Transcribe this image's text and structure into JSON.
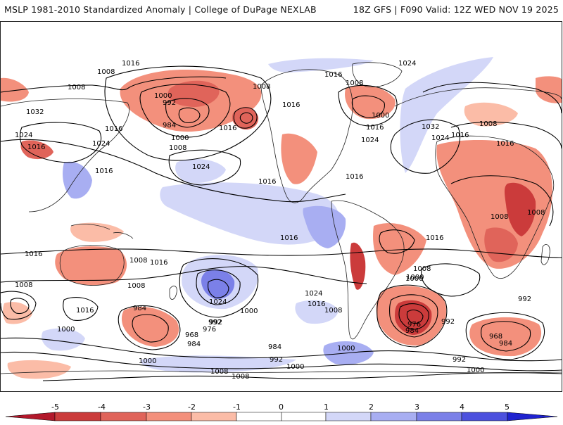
{
  "header": {
    "left": "MSLP 1981-2010 Standardized Anomaly | College of DuPage NEXLAB",
    "right": "18Z GFS | F090 Valid: 12Z WED NOV 19 2025"
  },
  "colors": {
    "neg5": "#b2182b",
    "neg4": "#cb3b3b",
    "neg3": "#e0645a",
    "neg2": "#f3907c",
    "neg1": "#fbbca7",
    "zero": "#ffffff",
    "pos1": "#d3d7f8",
    "pos2": "#a8aef2",
    "pos3": "#7b80e8",
    "pos4": "#4c50de",
    "pos5": "#1f22cf",
    "land": "#ffffff",
    "coast": "#222222",
    "isobar": "#000000"
  },
  "isobar_labels": [
    {
      "id": "l1",
      "text": "1016"
    },
    {
      "id": "l2",
      "text": "1008"
    },
    {
      "id": "l3",
      "text": "1008"
    },
    {
      "id": "l4",
      "text": "1000"
    },
    {
      "id": "l5",
      "text": "992"
    },
    {
      "id": "l6",
      "text": "984"
    },
    {
      "id": "l7",
      "text": "1000"
    },
    {
      "id": "l8",
      "text": "1008"
    },
    {
      "id": "l9",
      "text": "1016"
    },
    {
      "id": "l10",
      "text": "1024"
    },
    {
      "id": "l11",
      "text": "1008"
    },
    {
      "id": "l12",
      "text": "1032"
    },
    {
      "id": "l13",
      "text": "1024"
    },
    {
      "id": "l14",
      "text": "1016"
    },
    {
      "id": "l15",
      "text": "1016"
    },
    {
      "id": "l16",
      "text": "1024"
    },
    {
      "id": "l17",
      "text": "1016"
    },
    {
      "id": "l18",
      "text": "1016"
    },
    {
      "id": "l19",
      "text": "1016"
    },
    {
      "id": "l20",
      "text": "1008"
    },
    {
      "id": "l21",
      "text": "1000"
    },
    {
      "id": "l22",
      "text": "1016"
    },
    {
      "id": "l23",
      "text": "1024"
    },
    {
      "id": "l24",
      "text": "1016"
    },
    {
      "id": "l25",
      "text": "1024"
    },
    {
      "id": "l26",
      "text": "1032"
    },
    {
      "id": "l27",
      "text": "1024"
    },
    {
      "id": "l28",
      "text": "1016"
    },
    {
      "id": "l29",
      "text": "1008"
    },
    {
      "id": "l30",
      "text": "1016"
    },
    {
      "id": "l31",
      "text": "1016"
    },
    {
      "id": "l32",
      "text": "1008"
    },
    {
      "id": "l33",
      "text": "1008"
    },
    {
      "id": "l34",
      "text": "1016"
    },
    {
      "id": "l35",
      "text": "1016"
    },
    {
      "id": "l36",
      "text": "1008"
    },
    {
      "id": "l37",
      "text": "1016"
    },
    {
      "id": "l38",
      "text": "1008"
    },
    {
      "id": "l39",
      "text": "1008"
    },
    {
      "id": "l40",
      "text": "1016"
    },
    {
      "id": "l41",
      "text": "1000"
    },
    {
      "id": "l42",
      "text": "1008"
    },
    {
      "id": "l43",
      "text": "992"
    },
    {
      "id": "l44",
      "text": "1000"
    },
    {
      "id": "l45",
      "text": "1016"
    },
    {
      "id": "l46",
      "text": "984"
    },
    {
      "id": "l47",
      "text": "992"
    },
    {
      "id": "l48",
      "text": "968"
    },
    {
      "id": "l49",
      "text": "976"
    },
    {
      "id": "l50",
      "text": "984"
    },
    {
      "id": "l51",
      "text": "1000"
    },
    {
      "id": "l52",
      "text": "1024"
    },
    {
      "id": "l53",
      "text": "1000"
    },
    {
      "id": "l54",
      "text": "1024"
    },
    {
      "id": "l55",
      "text": "1016"
    },
    {
      "id": "l56",
      "text": "1008"
    },
    {
      "id": "l57",
      "text": "984"
    },
    {
      "id": "l58",
      "text": "992"
    },
    {
      "id": "l59",
      "text": "1000"
    },
    {
      "id": "l60",
      "text": "1008"
    },
    {
      "id": "l61",
      "text": "1008"
    },
    {
      "id": "l62",
      "text": "1000"
    },
    {
      "id": "l63",
      "text": "1000"
    },
    {
      "id": "l64",
      "text": "976"
    },
    {
      "id": "l65",
      "text": "984"
    },
    {
      "id": "l66",
      "text": "992"
    },
    {
      "id": "l67",
      "text": "992"
    },
    {
      "id": "l68",
      "text": "1000"
    },
    {
      "id": "l69",
      "text": "992"
    },
    {
      "id": "l70",
      "text": "968"
    },
    {
      "id": "l71",
      "text": "984"
    }
  ],
  "colorbar": {
    "ticks": [
      "-5",
      "-4",
      "-3",
      "-2",
      "-1",
      "0",
      "1",
      "2",
      "3",
      "4",
      "5"
    ]
  }
}
